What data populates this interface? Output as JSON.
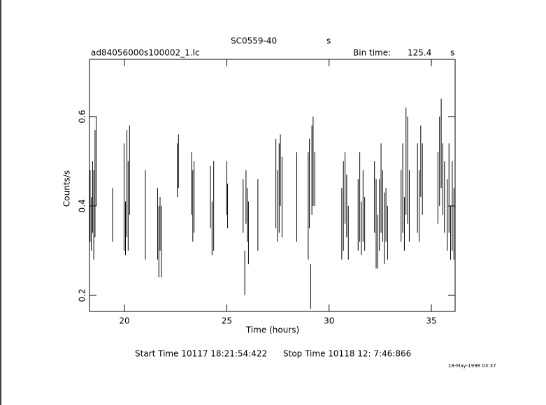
{
  "chart_data": {
    "type": "errorbar",
    "title": "SC0559-40",
    "title_unit": "s",
    "file": "ad84056000s100002_1.lc",
    "bin_time_label": "Bin time:",
    "bin_time": "125.4",
    "bin_time_unit": "s",
    "xlabel": "Time (hours)",
    "ylabel": "Counts/s",
    "start_time": "Start Time 10117 18:21:54:422",
    "stop_time": "Stop Time 10118 12: 7:46:866",
    "date": "18-May-1998 03:37",
    "color": "#000000",
    "xlim": [
      18.29,
      36.16
    ],
    "ylim": [
      0.164,
      0.728
    ],
    "xticks": [
      20,
      25,
      30,
      35
    ],
    "yticks": [
      0.2,
      0.4,
      0.6
    ],
    "x": [
      18.32,
      18.38,
      18.44,
      18.5,
      18.56,
      18.62,
      19.42,
      19.98,
      20.05,
      20.12,
      20.18,
      20.25,
      21.02,
      21.62,
      21.68,
      21.74,
      21.8,
      22.58,
      22.64,
      23.28,
      23.34,
      23.4,
      24.2,
      24.28,
      24.36,
      25.0,
      25.04,
      25.8,
      25.88,
      25.94,
      26.0,
      26.06,
      26.52,
      27.4,
      27.48,
      27.56,
      27.62,
      27.7,
      28.42,
      28.98,
      29.04,
      29.1,
      29.16,
      29.22,
      29.3,
      30.62,
      30.7,
      30.78,
      30.86,
      30.94,
      31.42,
      31.5,
      31.58,
      31.66,
      31.74,
      32.22,
      32.3,
      32.38,
      32.46,
      32.54,
      32.62,
      32.7,
      32.78,
      32.86,
      33.52,
      33.6,
      33.68,
      33.76,
      33.84,
      33.92,
      34.32,
      34.4,
      34.48,
      34.56,
      35.32,
      35.4,
      35.48,
      35.56,
      35.64,
      35.78,
      35.86,
      35.94,
      36.02,
      36.1
    ],
    "values": [
      0.4,
      0.36,
      0.42,
      0.38,
      0.45,
      0.5,
      0.38,
      0.42,
      0.35,
      0.45,
      0.4,
      0.48,
      0.38,
      0.36,
      0.32,
      0.36,
      0.32,
      0.48,
      0.5,
      0.45,
      0.4,
      0.42,
      0.42,
      0.35,
      0.4,
      0.44,
      0.4,
      0.4,
      0.25,
      0.42,
      0.38,
      0.34,
      0.38,
      0.45,
      0.4,
      0.44,
      0.48,
      0.42,
      0.42,
      0.4,
      0.45,
      0.22,
      0.48,
      0.5,
      0.46,
      0.36,
      0.4,
      0.44,
      0.4,
      0.34,
      0.38,
      0.42,
      0.35,
      0.4,
      0.36,
      0.42,
      0.36,
      0.32,
      0.38,
      0.44,
      0.4,
      0.35,
      0.38,
      0.34,
      0.4,
      0.44,
      0.36,
      0.5,
      0.48,
      0.4,
      0.44,
      0.4,
      0.5,
      0.46,
      0.44,
      0.5,
      0.54,
      0.46,
      0.42,
      0.38,
      0.44,
      0.34,
      0.4,
      0.36
    ],
    "errors": [
      0.08,
      0.06,
      0.08,
      0.1,
      0.12,
      0.1,
      0.06,
      0.12,
      0.06,
      0.12,
      0.1,
      0.1,
      0.1,
      0.08,
      0.08,
      0.06,
      0.08,
      0.06,
      0.06,
      0.07,
      0.08,
      0.08,
      0.07,
      0.06,
      0.1,
      0.06,
      0.05,
      0.06,
      0.05,
      0.06,
      0.06,
      0.07,
      0.08,
      0.1,
      0.08,
      0.1,
      0.08,
      0.09,
      0.1,
      0.12,
      0.1,
      0.05,
      0.1,
      0.1,
      0.06,
      0.08,
      0.1,
      0.08,
      0.07,
      0.06,
      0.08,
      0.1,
      0.06,
      0.08,
      0.06,
      0.08,
      0.1,
      0.06,
      0.08,
      0.1,
      0.08,
      0.08,
      0.06,
      0.06,
      0.08,
      0.1,
      0.06,
      0.12,
      0.12,
      0.08,
      0.1,
      0.08,
      0.08,
      0.08,
      0.08,
      0.1,
      0.1,
      0.08,
      0.08,
      0.08,
      0.1,
      0.06,
      0.1,
      0.08
    ]
  }
}
